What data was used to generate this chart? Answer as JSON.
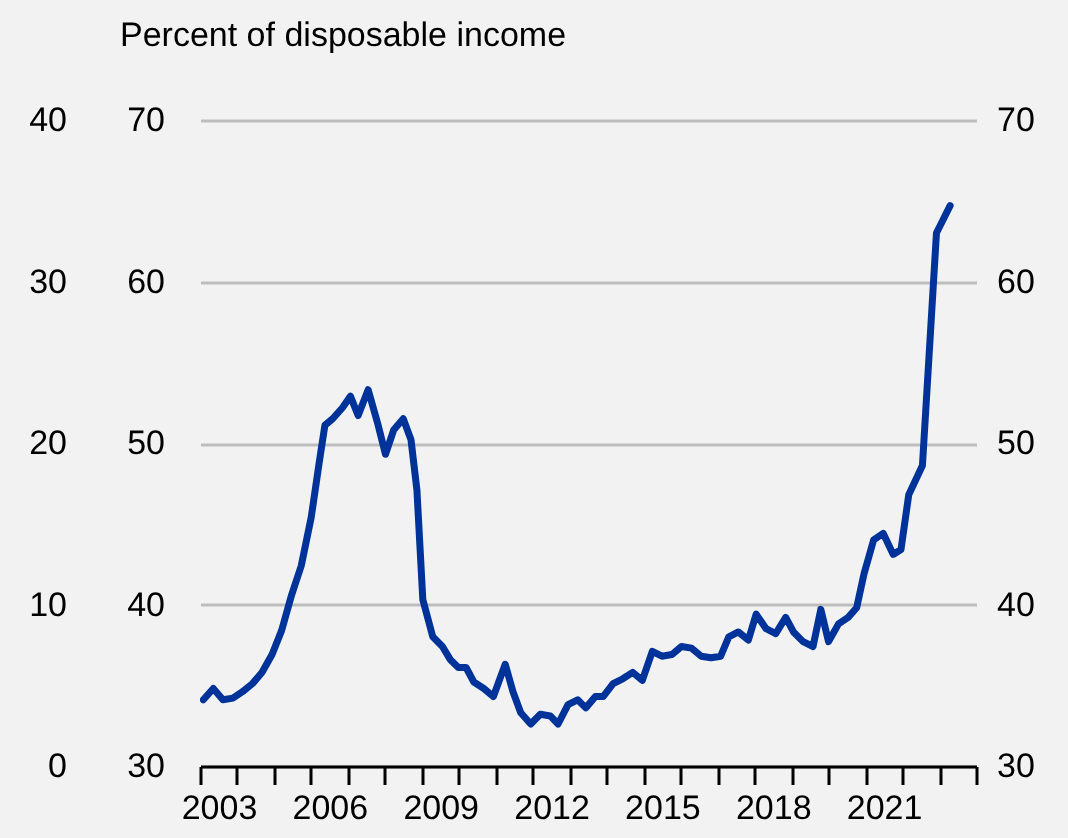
{
  "chart_data": {
    "type": "line",
    "ylabel": "Percent of disposable income",
    "x": [
      2003.09,
      2003.36,
      2003.62,
      2003.89,
      2004.15,
      2004.42,
      2004.68,
      2004.95,
      2005.21,
      2005.48,
      2005.74,
      2006.01,
      2006.22,
      2006.38,
      2006.59,
      2006.86,
      2007.07,
      2007.28,
      2007.55,
      2007.81,
      2008.02,
      2008.24,
      2008.5,
      2008.71,
      2008.87,
      2009.03,
      2009.3,
      2009.56,
      2009.77,
      2009.99,
      2010.2,
      2010.41,
      2010.68,
      2010.94,
      2011.26,
      2011.47,
      2011.68,
      2011.95,
      2012.21,
      2012.48,
      2012.69,
      2012.96,
      2013.22,
      2013.44,
      2013.7,
      2013.91,
      2014.18,
      2014.44,
      2014.71,
      2014.97,
      2015.24,
      2015.5,
      2015.77,
      2016.03,
      2016.3,
      2016.56,
      2016.83,
      2017.09,
      2017.31,
      2017.57,
      2017.84,
      2018.05,
      2018.32,
      2018.58,
      2018.85,
      2019.06,
      2019.32,
      2019.59,
      2019.8,
      2020.01,
      2020.28,
      2020.54,
      2020.77,
      2020.97,
      2021.23,
      2021.49,
      2021.76,
      2021.97,
      2022.18,
      2022.55,
      2022.93,
      2023.3
    ],
    "series": [
      {
        "color": "#003399",
        "values": [
          34.1,
          34.8,
          34.1,
          34.2,
          34.6,
          35.1,
          35.8,
          36.9,
          38.4,
          40.6,
          42.4,
          45.4,
          48.7,
          51.1,
          51.5,
          52.2,
          52.9,
          51.7,
          53.3,
          51.2,
          49.3,
          50.8,
          51.5,
          50.2,
          47.1,
          40.3,
          38.0,
          37.4,
          36.6,
          36.1,
          36.1,
          35.2,
          34.8,
          34.3,
          36.3,
          34.6,
          33.3,
          32.6,
          33.2,
          33.1,
          32.6,
          33.8,
          34.1,
          33.6,
          34.3,
          34.3,
          35.1,
          35.4,
          35.8,
          35.3,
          37.1,
          36.8,
          36.9,
          37.4,
          37.3,
          36.8,
          36.7,
          36.8,
          38.0,
          38.3,
          37.8,
          39.4,
          38.5,
          38.2,
          39.2,
          38.3,
          37.7,
          37.4,
          39.7,
          37.7,
          38.8,
          39.2,
          39.8,
          41.9,
          44.0,
          44.4,
          43.1,
          43.4,
          46.8,
          48.6,
          63.0,
          64.7
        ]
      }
    ],
    "xlim": [
      2003,
      2024
    ],
    "xticks": [
      {
        "value": 2003,
        "label": null
      },
      {
        "value": 2003.5,
        "label": "2003"
      },
      {
        "value": 2004,
        "label": null
      },
      {
        "value": 2005,
        "label": null
      },
      {
        "value": 2006,
        "label": null
      },
      {
        "value": 2006.5,
        "label": "2006"
      },
      {
        "value": 2007,
        "label": null
      },
      {
        "value": 2008,
        "label": null
      },
      {
        "value": 2009,
        "label": null
      },
      {
        "value": 2009.5,
        "label": "2009"
      },
      {
        "value": 2010,
        "label": null
      },
      {
        "value": 2011,
        "label": null
      },
      {
        "value": 2012,
        "label": null
      },
      {
        "value": 2012.5,
        "label": "2012"
      },
      {
        "value": 2013,
        "label": null
      },
      {
        "value": 2014,
        "label": null
      },
      {
        "value": 2015,
        "label": null
      },
      {
        "value": 2015.5,
        "label": "2015"
      },
      {
        "value": 2016,
        "label": null
      },
      {
        "value": 2017,
        "label": null
      },
      {
        "value": 2018,
        "label": null
      },
      {
        "value": 2018.5,
        "label": "2018"
      },
      {
        "value": 2019,
        "label": null
      },
      {
        "value": 2020,
        "label": null
      },
      {
        "value": 2021,
        "label": null
      },
      {
        "value": 2021.5,
        "label": "2021"
      },
      {
        "value": 2022,
        "label": null
      },
      {
        "value": 2023,
        "label": null
      },
      {
        "value": 2024,
        "label": null
      }
    ],
    "ylim": [
      30,
      70
    ],
    "yticks": [
      30,
      40,
      50,
      60,
      70
    ],
    "y2lim": [
      30,
      70
    ],
    "y2ticks": [
      30,
      40,
      50,
      60,
      70
    ],
    "y3lim": [
      0,
      40
    ],
    "y3ticks": [
      0,
      10,
      20,
      30,
      40
    ],
    "grid": "y",
    "marker": "none",
    "line_style": "solid"
  }
}
